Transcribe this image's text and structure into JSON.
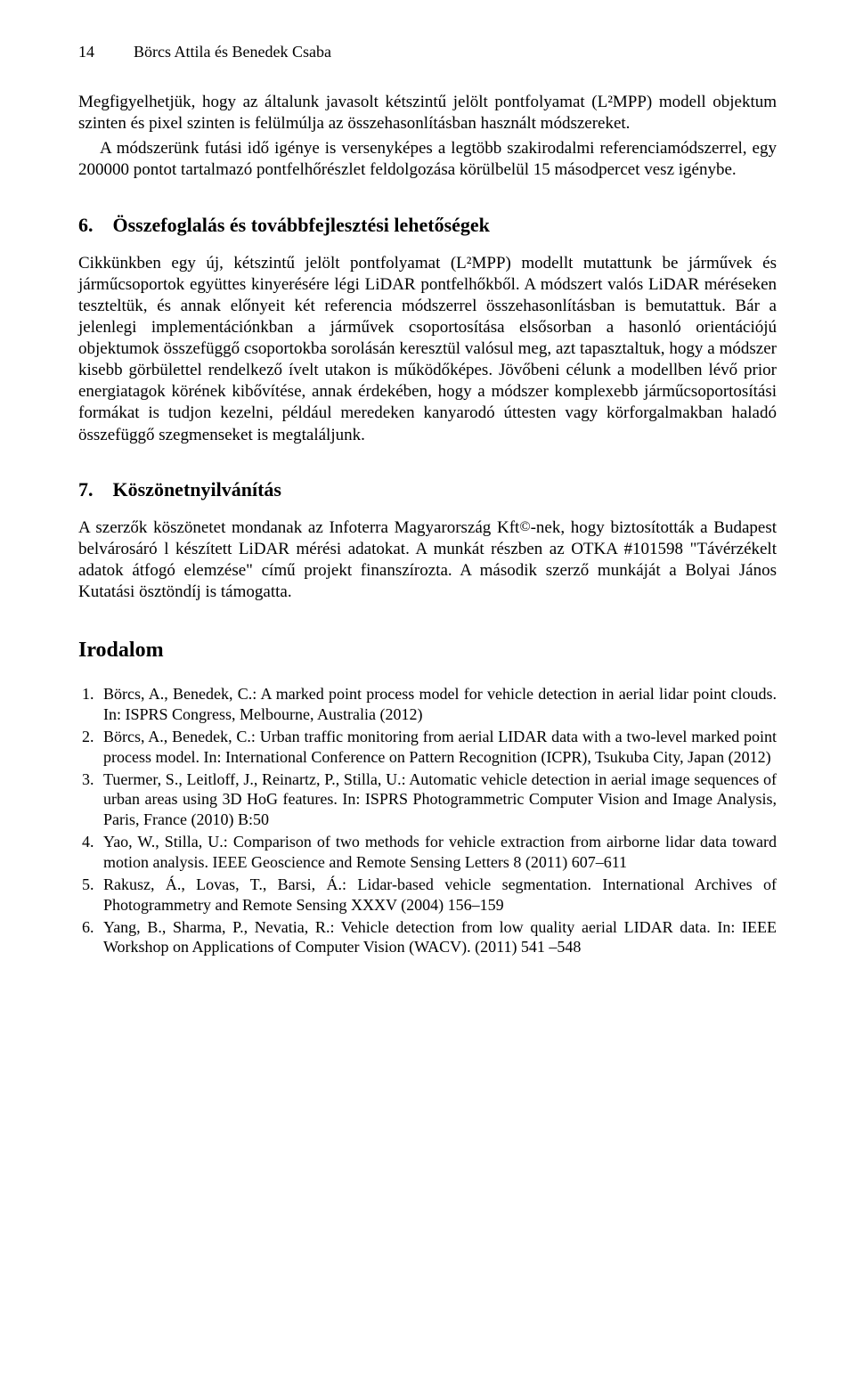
{
  "header": {
    "page_number": "14",
    "running_title": "Börcs Attila és Benedek Csaba"
  },
  "intro_block": {
    "p1": "Megfigyelhetjük, hogy az általunk javasolt kétszintű jelölt pontfolyamat (L²MPP) modell objektum szinten és pixel szinten is felülmúlja az összehasonlításban használt módszereket.",
    "p2": "A módszerünk futási idő igénye is versenyképes a legtöbb szakirodalmi referenciamódszerrel, egy 200000 pontot tartalmazó pontfelhőrészlet feldolgozása körülbelül 15 másodpercet vesz igénybe."
  },
  "section6": {
    "number": "6.",
    "title": "Összefoglalás és továbbfejlesztési lehetőségek",
    "body": "Cikkünkben egy új, kétszintű jelölt pontfolyamat (L²MPP) modellt mutattunk be járművek és járműcsoportok együttes kinyerésére légi LiDAR pontfelhőkből. A módszert valós LiDAR méréseken teszteltük, és annak előnyeit két referencia módszerrel összehasonlításban is bemutattuk. Bár a jelenlegi implementációnkban a járművek csoportosítása elsősorban a hasonló orientációjú objektumok összefüggő csoportokba sorolásán keresztül valósul meg, azt tapasztaltuk, hogy a módszer kisebb görbülettel rendelkező ívelt utakon is működőképes. Jövőbeni célunk a modellben lévő prior energiatagok körének kibővítése, annak érdekében, hogy a módszer komplexebb járműcsoportosítási formákat is tudjon kezelni, például meredeken kanyarodó úttesten vagy körforgalmakban haladó összefüggő szegmenseket is megtaláljunk."
  },
  "section7": {
    "number": "7.",
    "title": "Köszönetnyilvánítás",
    "body_pre": "A szerzők köszönetet mondanak az Infoterra Magyarország Kft",
    "body_post": "-nek, hogy biztosították a Budapest belvárosáró l készített LiDAR mérési adatokat. A munkát részben az OTKA #101598 \"Távérzékelt adatok átfogó elemzése\" című projekt finanszírozta. A második szerző munkáját a Bolyai János Kutatási ösztöndíj is támogatta."
  },
  "references": {
    "heading": "Irodalom",
    "items": [
      "Börcs, A., Benedek, C.: A marked point process model for vehicle detection in aerial lidar point clouds. In: ISPRS Congress, Melbourne, Australia (2012)",
      "Börcs, A., Benedek, C.: Urban traffic monitoring from aerial LIDAR data with a two-level marked point process model. In: International Conference on Pattern Recognition (ICPR), Tsukuba City, Japan (2012)",
      "Tuermer, S., Leitloff, J., Reinartz, P., Stilla, U.: Automatic vehicle detection in aerial image sequences of urban areas using 3D HoG features. In: ISPRS Photogrammetric Computer Vision and Image Analysis, Paris, France (2010) B:50",
      "Yao, W., Stilla, U.: Comparison of two methods for vehicle extraction from airborne lidar data toward motion analysis. IEEE Geoscience and Remote Sensing Letters 8 (2011) 607–611",
      "Rakusz, Á., Lovas, T., Barsi, Á.: Lidar-based vehicle segmentation. International Archives of Photogrammetry and Remote Sensing XXXV (2004) 156–159",
      "Yang, B., Sharma, P., Nevatia, R.: Vehicle detection from low quality aerial LIDAR data. In: IEEE Workshop on Applications of Computer Vision (WACV). (2011) 541 –548"
    ]
  }
}
